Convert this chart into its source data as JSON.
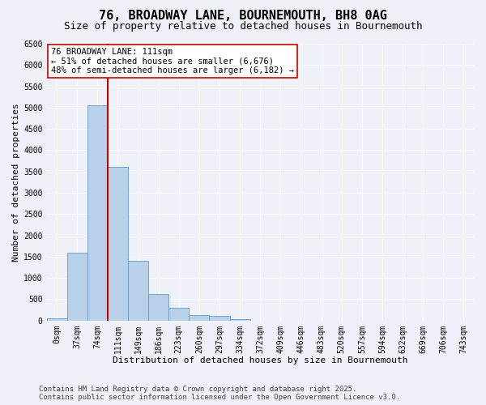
{
  "title_line1": "76, BROADWAY LANE, BOURNEMOUTH, BH8 0AG",
  "title_line2": "Size of property relative to detached houses in Bournemouth",
  "xlabel": "Distribution of detached houses by size in Bournemouth",
  "ylabel": "Number of detached properties",
  "bar_labels": [
    "0sqm",
    "37sqm",
    "74sqm",
    "111sqm",
    "149sqm",
    "186sqm",
    "223sqm",
    "260sqm",
    "297sqm",
    "334sqm",
    "372sqm",
    "409sqm",
    "446sqm",
    "483sqm",
    "520sqm",
    "557sqm",
    "594sqm",
    "632sqm",
    "669sqm",
    "706sqm",
    "743sqm"
  ],
  "bar_values": [
    60,
    1600,
    5050,
    3600,
    1400,
    620,
    300,
    130,
    100,
    30,
    0,
    0,
    0,
    0,
    0,
    0,
    0,
    0,
    0,
    0,
    0
  ],
  "bar_color": "#b8d0e8",
  "bar_edge_color": "#6699cc",
  "property_size_idx": 3,
  "vline_color": "#cc0000",
  "annotation_text": "76 BROADWAY LANE: 111sqm\n← 51% of detached houses are smaller (6,676)\n48% of semi-detached houses are larger (6,182) →",
  "annotation_box_color": "#ffffff",
  "annotation_box_edge_color": "#cc0000",
  "ylim": [
    0,
    6500
  ],
  "yticks": [
    0,
    500,
    1000,
    1500,
    2000,
    2500,
    3000,
    3500,
    4000,
    4500,
    5000,
    5500,
    6000,
    6500
  ],
  "background_color": "#eef2f8",
  "footer_line1": "Contains HM Land Registry data © Crown copyright and database right 2025.",
  "footer_line2": "Contains public sector information licensed under the Open Government Licence v3.0.",
  "title_fontsize": 11,
  "subtitle_fontsize": 9,
  "axis_label_fontsize": 8,
  "tick_fontsize": 7,
  "annotation_fontsize": 7.5,
  "footer_fontsize": 6.5
}
